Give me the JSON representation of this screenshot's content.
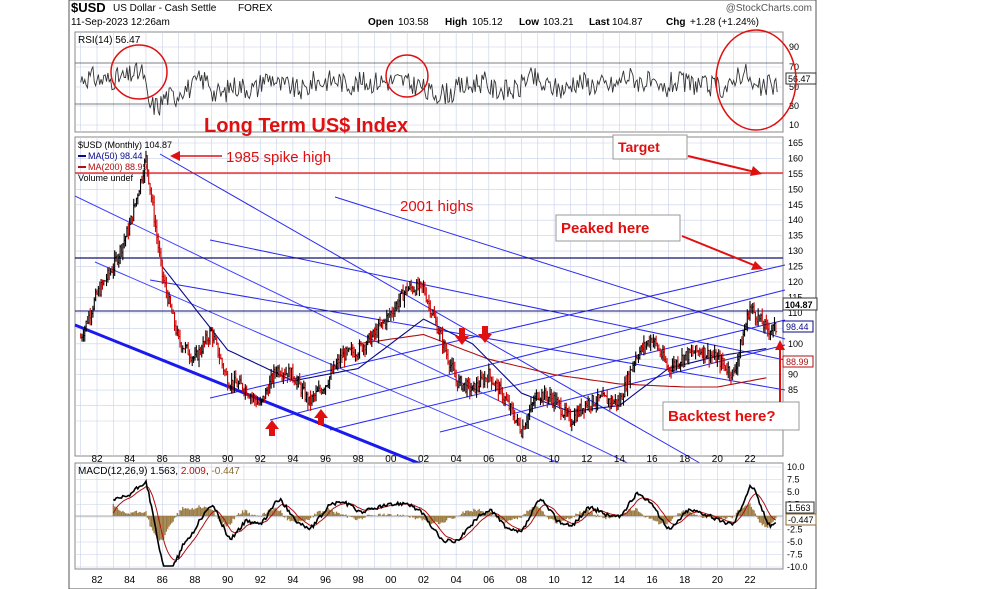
{
  "header": {
    "symbol": "$USD",
    "name": "US Dollar - Cash Settle",
    "exchange": "FOREX",
    "watermark": "@StockCharts.com",
    "date": "11-Sep-2023 12:26am",
    "open_label": "Open",
    "open": "103.58",
    "high_label": "High",
    "high": "105.12",
    "low_label": "Low",
    "low": "103.21",
    "last_label": "Last",
    "last": "104.87",
    "chg_label": "Chg",
    "chg": "+1.28 (+1.24%)"
  },
  "colors": {
    "price_up": "#000000",
    "price_down": "#cc0000",
    "ma50": "#0a0a8a",
    "ma200": "#b01010",
    "channel": "#2a2af0",
    "annotation": "#e01010",
    "grid": "#c8d0e8",
    "panel_border": "#888888"
  },
  "rsi": {
    "label": "RSI(14) 56.47",
    "value": "56.47",
    "ticks": [
      "90",
      "70",
      "50",
      "30",
      "10"
    ]
  },
  "price": {
    "legend_title": "$USD (Monthly) 104.87",
    "legend_ma50": "MA(50) 98.44",
    "legend_ma200": "MA(200) 88.99",
    "legend_volume": "Volume undef",
    "ticks": [
      "165",
      "160",
      "155",
      "150",
      "145",
      "140",
      "135",
      "130",
      "125",
      "120",
      "115",
      "110",
      "105",
      "100",
      "95",
      "90",
      "85",
      "80",
      "75"
    ],
    "last_tag": "104.87",
    "ma50_tag": "98.44",
    "ma200_tag": "88.99"
  },
  "macd": {
    "label_prefix": "MACD(12,26,9)",
    "macd": "1.563",
    "signal": "2.009",
    "hist": "-0.447",
    "ticks": [
      "10.0",
      "7.5",
      "5.0",
      "2.5",
      "0.0",
      "-2.5",
      "-5.0",
      "-7.5",
      "-10.0"
    ],
    "tag_macd": "1.563",
    "tag_hist": "-0.447"
  },
  "x_axis": [
    "82",
    "84",
    "86",
    "88",
    "90",
    "92",
    "94",
    "96",
    "98",
    "00",
    "02",
    "04",
    "06",
    "08",
    "10",
    "12",
    "14",
    "16",
    "18",
    "20",
    "22"
  ],
  "annotations": {
    "title": "Long Term US$ Index",
    "spike": "1985 spike high",
    "highs_2001": "2001 highs",
    "target": "Target",
    "peaked": "Peaked here",
    "backtest": "Backtest here?"
  },
  "chart_data": {
    "type": "line",
    "title": "Long Term US$ Index",
    "series": [
      {
        "name": "$USD (Monthly)",
        "x": [
          1981,
          1982,
          1983,
          1984,
          1985,
          1986,
          1987,
          1988,
          1989,
          1990,
          1991,
          1992,
          1993,
          1994,
          1995,
          1996,
          1997,
          1998,
          1999,
          2000,
          2001,
          2002,
          2003,
          2004,
          2005,
          2006,
          2007,
          2008,
          2009,
          2010,
          2011,
          2012,
          2013,
          2014,
          2015,
          2016,
          2017,
          2018,
          2019,
          2020,
          2021,
          2022,
          2023
        ],
        "values": [
          102,
          116,
          125,
          138,
          160,
          122,
          101,
          95,
          104,
          88,
          86,
          80,
          92,
          90,
          81,
          87,
          96,
          98,
          103,
          110,
          118,
          118,
          103,
          88,
          85,
          90,
          82,
          72,
          84,
          82,
          75,
          81,
          82,
          81,
          96,
          102,
          92,
          96,
          98,
          95,
          90,
          112,
          104.87
        ]
      },
      {
        "name": "MA(50)",
        "x": [
          1986,
          1990,
          1994,
          1998,
          2002,
          2005,
          2008,
          2011,
          2014,
          2017,
          2020,
          2023
        ],
        "values": [
          125,
          98,
          88,
          92,
          108,
          100,
          84,
          78,
          80,
          92,
          96,
          98.44
        ]
      },
      {
        "name": "MA(200)",
        "x": [
          1998,
          2002,
          2006,
          2010,
          2014,
          2018,
          2020,
          2023
        ],
        "values": [
          100,
          103,
          95,
          90,
          87,
          86,
          86,
          88.99
        ]
      }
    ],
    "rsi": {
      "last": 56.47
    },
    "macd": {
      "macd": 1.563,
      "signal": 2.009,
      "histogram": -0.447
    },
    "ylim": [
      75,
      165
    ],
    "grid": true,
    "legend": "top-left"
  }
}
